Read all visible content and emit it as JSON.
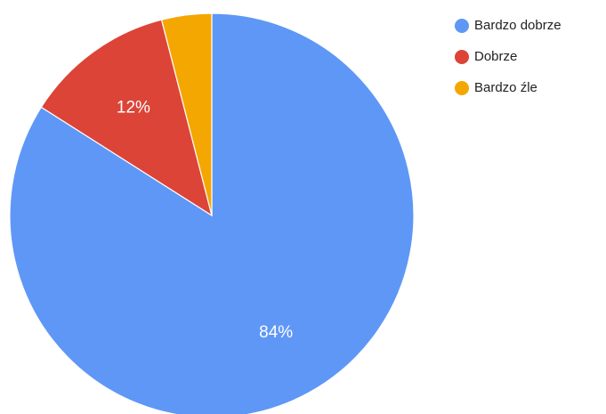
{
  "chart_data": {
    "type": "pie",
    "series": [
      {
        "name": "Bardzo dobrze",
        "value": 84,
        "color": "#5f97f6",
        "label": "84%"
      },
      {
        "name": "Dobrze",
        "value": 12,
        "color": "#dc4437",
        "label": "12%"
      },
      {
        "name": "Bardzo źle",
        "value": 4,
        "color": "#f4a700",
        "label": ""
      }
    ],
    "legend_position": "right"
  }
}
